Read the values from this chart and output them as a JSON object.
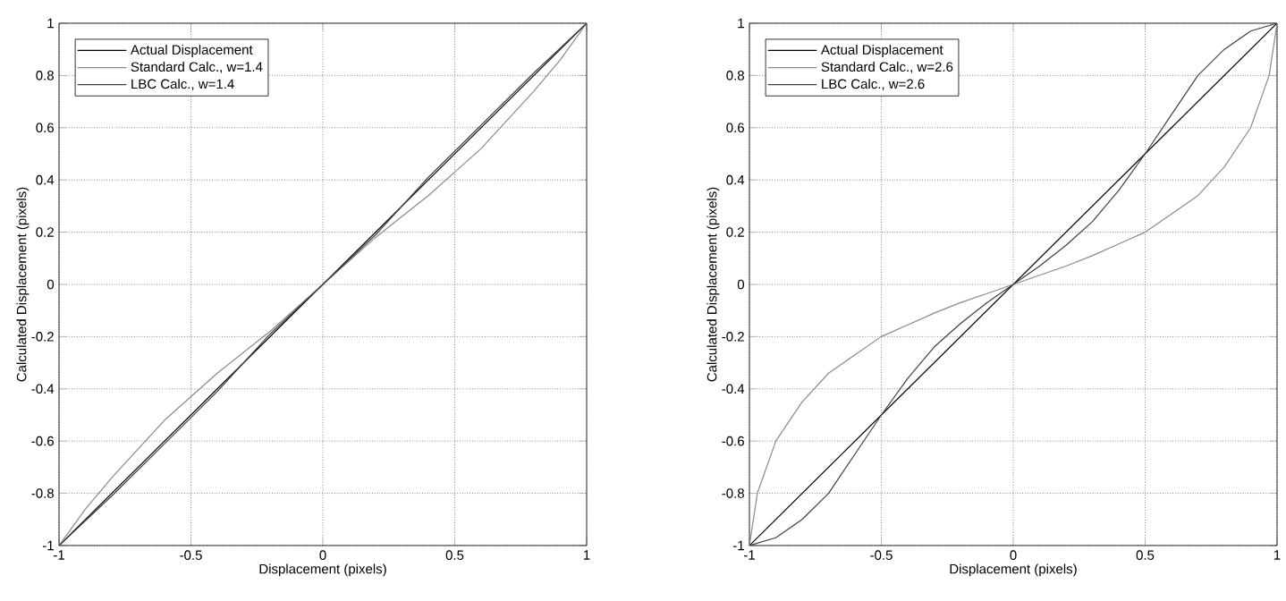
{
  "chart_data": [
    {
      "type": "line",
      "xlabel": "Displacement (pixels)",
      "ylabel": "Calculated Displacement (pixels)",
      "xlim": [
        -1,
        1
      ],
      "ylim": [
        -1,
        1
      ],
      "xticks": [
        -1,
        -0.5,
        0,
        0.5,
        1
      ],
      "yticks": [
        -1,
        -0.8,
        -0.6,
        -0.4,
        -0.2,
        0,
        0.2,
        0.4,
        0.6,
        0.8,
        1
      ],
      "grid": true,
      "legend": "top left",
      "line_style": "solid",
      "marker": "none",
      "series": [
        {
          "name": "Actual Displacement",
          "color": "#000000",
          "x": [
            -1,
            1
          ],
          "values": [
            -1,
            1
          ]
        },
        {
          "name": "Standard Calc., w=1.4",
          "color": "#8a8a8a",
          "x": [
            -1,
            -0.9,
            -0.8,
            -0.7,
            -0.6,
            -0.5,
            -0.4,
            -0.3,
            -0.2,
            -0.1,
            0,
            0.1,
            0.2,
            0.3,
            0.4,
            0.5,
            0.6,
            0.7,
            0.8,
            0.9,
            1
          ],
          "values": [
            -1,
            -0.86,
            -0.74,
            -0.63,
            -0.52,
            -0.43,
            -0.34,
            -0.26,
            -0.18,
            -0.09,
            0,
            0.09,
            0.18,
            0.26,
            0.34,
            0.43,
            0.52,
            0.63,
            0.74,
            0.86,
            1
          ]
        },
        {
          "name": "LBC Calc., w=1.4",
          "color": "#404040",
          "x": [
            -1,
            -0.8,
            -0.6,
            -0.4,
            -0.2,
            0,
            0.2,
            0.4,
            0.6,
            0.8,
            1
          ],
          "values": [
            -1,
            -0.81,
            -0.61,
            -0.41,
            -0.19,
            0,
            0.19,
            0.41,
            0.61,
            0.81,
            1
          ]
        }
      ]
    },
    {
      "type": "line",
      "xlabel": "Displacement (pixels)",
      "ylabel": "Calculated Displacement (pixels)",
      "xlim": [
        -1,
        1
      ],
      "ylim": [
        -1,
        1
      ],
      "xticks": [
        -1,
        -0.5,
        0,
        0.5,
        1
      ],
      "yticks": [
        -1,
        -0.8,
        -0.6,
        -0.4,
        -0.2,
        0,
        0.2,
        0.4,
        0.6,
        0.8,
        1
      ],
      "grid": true,
      "legend": "top left",
      "line_style": "solid",
      "marker": "none",
      "series": [
        {
          "name": "Actual Displacement",
          "color": "#000000",
          "x": [
            -1,
            1
          ],
          "values": [
            -1,
            1
          ]
        },
        {
          "name": "Standard Calc., w=2.6",
          "color": "#8a8a8a",
          "x": [
            -1,
            -0.97,
            -0.9,
            -0.8,
            -0.7,
            -0.6,
            -0.5,
            -0.4,
            -0.3,
            -0.2,
            -0.1,
            0,
            0.1,
            0.2,
            0.3,
            0.4,
            0.5,
            0.6,
            0.7,
            0.8,
            0.9,
            0.97,
            1
          ],
          "values": [
            -1,
            -0.8,
            -0.6,
            -0.45,
            -0.34,
            -0.27,
            -0.2,
            -0.155,
            -0.11,
            -0.07,
            -0.035,
            0,
            0.035,
            0.07,
            0.11,
            0.155,
            0.2,
            0.27,
            0.34,
            0.45,
            0.6,
            0.8,
            1
          ]
        },
        {
          "name": "LBC Calc., w=2.6",
          "color": "#404040",
          "x": [
            -1,
            -0.9,
            -0.8,
            -0.7,
            -0.6,
            -0.5,
            -0.4,
            -0.3,
            -0.2,
            -0.1,
            0,
            0.1,
            0.2,
            0.3,
            0.4,
            0.5,
            0.6,
            0.7,
            0.8,
            0.9,
            1
          ],
          "values": [
            -1,
            -0.97,
            -0.9,
            -0.8,
            -0.65,
            -0.5,
            -0.36,
            -0.24,
            -0.15,
            -0.07,
            0,
            0.07,
            0.15,
            0.24,
            0.36,
            0.5,
            0.65,
            0.8,
            0.9,
            0.97,
            1
          ]
        }
      ]
    }
  ]
}
